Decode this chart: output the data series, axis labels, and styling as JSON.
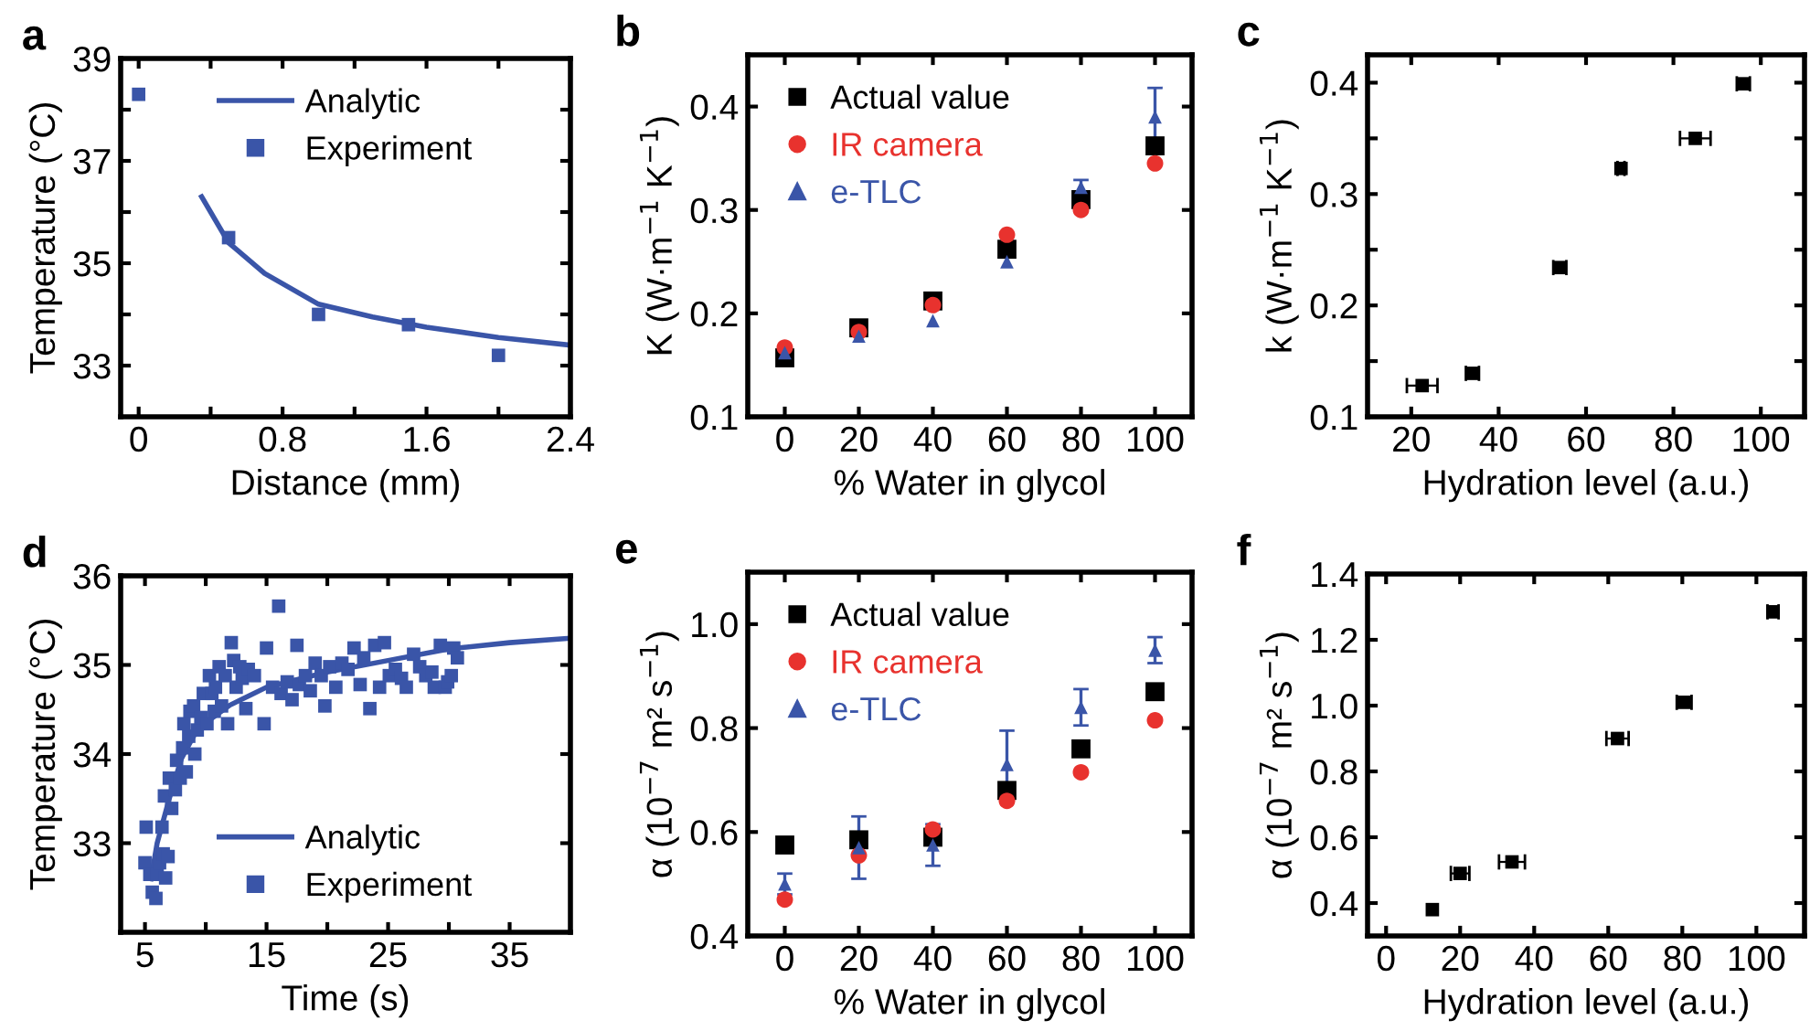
{
  "chart_data": [
    {
      "type": "scatter",
      "title": "a",
      "xlabel": "Distance (mm)",
      "ylabel": "Temperature (°C)",
      "xlim": [
        -0.1,
        2.4
      ],
      "ylim": [
        32,
        39
      ],
      "xticks": [
        0,
        {
          "value": 0.4,
          "label": null
        },
        0.8,
        {
          "value": 1.2,
          "label": null
        },
        1.6,
        {
          "value": 2.0,
          "label": null
        },
        2.4
      ],
      "yticks": [
        33,
        {
          "value": 34,
          "label": null
        },
        35,
        {
          "value": 36,
          "label": null
        },
        37,
        {
          "value": 38,
          "label": null
        },
        39
      ],
      "legend": "top",
      "series": [
        {
          "name": "Analytic",
          "type": "line",
          "color": "#3a55a8",
          "line_style": "solid",
          "x": [
            0.35,
            0.5,
            0.7,
            1.0,
            1.3,
            1.6,
            2.0,
            2.4
          ],
          "values": [
            36.3,
            35.4,
            34.8,
            34.2,
            33.95,
            33.75,
            33.55,
            33.4
          ]
        },
        {
          "name": "Experiment",
          "type": "scatter",
          "marker": "square",
          "color": "#3a55a8",
          "x": [
            0,
            0.5,
            1.0,
            1.5,
            2.0
          ],
          "values": [
            38.3,
            35.5,
            34.0,
            33.8,
            33.2
          ]
        }
      ]
    },
    {
      "type": "scatter",
      "title": "b",
      "xlabel": "% Water in glycol",
      "ylabel": "K (W·m$^{−1}$ K$^{−1}$)",
      "xlim": [
        -10,
        110
      ],
      "ylim": [
        0.1,
        0.45
      ],
      "xticks": [
        0,
        20,
        40,
        60,
        80,
        100
      ],
      "yticks": [
        0.1,
        0.2,
        0.3,
        0.4
      ],
      "legend": "top left",
      "x": [
        0,
        20,
        40,
        60,
        80,
        100
      ],
      "series": [
        {
          "name": "Actual value",
          "marker": "square",
          "color": "#000000",
          "values": [
            0.157,
            0.186,
            0.212,
            0.262,
            0.31,
            0.362
          ]
        },
        {
          "name": "IR camera",
          "marker": "circle",
          "color": "#e8322e",
          "values": [
            0.167,
            0.182,
            0.208,
            0.276,
            0.3,
            0.345
          ]
        },
        {
          "name": "e-TLC",
          "marker": "triangle",
          "color": "#3a55a8",
          "values": [
            0.162,
            0.178,
            0.193,
            0.25,
            0.322,
            0.39
          ],
          "errors": [
            null,
            null,
            null,
            null,
            0.007,
            0.028
          ]
        }
      ]
    },
    {
      "type": "scatter",
      "title": "c",
      "xlabel": "Hydration level (a.u.)",
      "ylabel": "k (W·m$^{−1}$ K$^{−1}$)",
      "xlim": [
        10,
        110
      ],
      "ylim": [
        0.1,
        0.425
      ],
      "xticks": [
        20,
        40,
        60,
        80,
        100
      ],
      "yticks": [
        0.1,
        {
          "value": 0.15,
          "label": null
        },
        0.2,
        {
          "value": 0.25,
          "label": null
        },
        0.3,
        {
          "value": 0.35,
          "label": null
        },
        0.4
      ],
      "series": [
        {
          "marker": "square",
          "color": "#000000",
          "x": [
            22.5,
            34,
            54,
            68,
            85,
            96
          ],
          "values": [
            0.128,
            0.139,
            0.234,
            0.323,
            0.35,
            0.399
          ],
          "xerrors": [
            3.5,
            1.5,
            1.5,
            0.8,
            3.5,
            1.5
          ]
        }
      ]
    },
    {
      "type": "scatter",
      "title": "d",
      "xlabel": "Time (s)",
      "ylabel": "Temperature (°C)",
      "xlim": [
        3,
        40
      ],
      "ylim": [
        32,
        36
      ],
      "xticks": [
        5,
        {
          "value": 10,
          "label": null
        },
        15,
        {
          "value": 20,
          "label": null
        },
        25,
        {
          "value": 30,
          "label": null
        },
        35
      ],
      "yticks": [
        33,
        34,
        35,
        36
      ],
      "legend": "bottom",
      "series": [
        {
          "name": "Analytic",
          "type": "line",
          "color": "#3a55a8",
          "line_style": "solid",
          "x": [
            5.5,
            6,
            7,
            8,
            9,
            10,
            11,
            12,
            15,
            20,
            25,
            30,
            35,
            40
          ],
          "values": [
            32.6,
            33.0,
            33.5,
            33.95,
            34.2,
            34.35,
            34.45,
            34.55,
            34.75,
            34.92,
            35.05,
            35.18,
            35.25,
            35.3
          ]
        },
        {
          "name": "Experiment",
          "type": "scatter",
          "marker": "square",
          "color": "#3a55a8",
          "x": [
            5.0,
            5.1,
            5.4,
            5.6,
            5.9,
            6.0,
            6.2,
            6.4,
            6.5,
            6.7,
            6.9,
            6.6,
            7.0,
            7.2,
            7.5,
            7.6,
            7.9,
            8.1,
            8.2,
            8.4,
            8.6,
            8.7,
            9.0,
            9.1,
            9.3,
            9.6,
            9.8,
            10.1,
            10.3,
            10.5,
            10.7,
            10.8,
            11.1,
            11.3,
            11.6,
            11.8,
            12.1,
            12.3,
            12.5,
            12.8,
            13.0,
            13.3,
            13.5,
            14.0,
            14.8,
            15.0,
            15.5,
            16.0,
            16.2,
            16.7,
            17.1,
            17.5,
            17.7,
            18.2,
            18.6,
            19.0,
            19.5,
            19.8,
            20.2,
            20.7,
            21.2,
            21.7,
            22.2,
            22.7,
            23.0,
            23.5,
            23.9,
            24.3,
            24.7,
            25.1,
            25.6,
            26.1,
            26.5,
            27.1,
            27.6,
            28.1,
            28.6,
            28.8,
            29.3,
            29.7,
            29.9,
            30.2,
            30.4,
            30.7
          ],
          "values": [
            32.78,
            33.18,
            32.65,
            32.45,
            32.38,
            32.65,
            32.78,
            33.18,
            32.88,
            32.61,
            32.85,
            33.53,
            33.73,
            33.39,
            33.6,
            33.93,
            33.73,
            34.07,
            34.34,
            33.8,
            34.2,
            34.48,
            34.54,
            34.0,
            34.27,
            34.41,
            34.68,
            34.34,
            34.88,
            34.68,
            34.48,
            34.75,
            34.98,
            34.54,
            34.88,
            34.34,
            35.25,
            35.05,
            34.75,
            34.98,
            34.85,
            34.51,
            34.95,
            34.88,
            34.34,
            35.19,
            34.75,
            35.66,
            34.68,
            34.81,
            34.61,
            35.22,
            34.78,
            34.88,
            34.71,
            35.02,
            34.88,
            34.54,
            34.98,
            34.75,
            35.02,
            34.95,
            35.19,
            34.78,
            35.08,
            34.51,
            35.22,
            34.75,
            35.25,
            34.88,
            34.95,
            34.85,
            34.75,
            35.12,
            34.98,
            34.88,
            34.92,
            34.75,
            35.22,
            34.75,
            34.81,
            34.88,
            35.19,
            35.08
          ]
        }
      ]
    },
    {
      "type": "scatter",
      "title": "e",
      "xlabel": "% Water in glycol",
      "ylabel": "α (10$^{−7}$ m² s$^{−1}$)",
      "xlim": [
        -10,
        110
      ],
      "ylim": [
        0.4,
        1.1
      ],
      "xticks": [
        0,
        20,
        40,
        60,
        80,
        100
      ],
      "yticks": [
        0.4,
        0.6,
        0.8,
        {
          "value": 1.0,
          "label": "1.0"
        }
      ],
      "legend": "top left",
      "x": [
        0,
        20,
        40,
        60,
        80,
        100
      ],
      "series": [
        {
          "name": "Actual value",
          "marker": "square",
          "color": "#000000",
          "values": [
            0.575,
            0.585,
            0.59,
            0.68,
            0.76,
            0.87
          ]
        },
        {
          "name": "IR camera",
          "marker": "circle",
          "color": "#e8322e",
          "values": [
            0.47,
            0.555,
            0.605,
            0.66,
            0.715,
            0.815
          ]
        },
        {
          "name": "e-TLC",
          "marker": "triangle",
          "color": "#3a55a8",
          "values": [
            0.5,
            0.57,
            0.575,
            0.73,
            0.84,
            0.95
          ],
          "errors": [
            0.02,
            0.06,
            0.04,
            0.065,
            0.035,
            0.025
          ]
        }
      ]
    },
    {
      "type": "scatter",
      "title": "f",
      "xlabel": "Hydration level (a.u.)",
      "ylabel": "α (10$^{−7}$ m² s$^{−1}$)",
      "xlim": [
        -5,
        113
      ],
      "ylim": [
        0.3,
        1.4
      ],
      "xticks": [
        0,
        20,
        40,
        60,
        80,
        100
      ],
      "yticks": [
        0.4,
        0.6,
        0.8,
        {
          "value": 1.0,
          "label": "1.0"
        },
        1.2,
        1.4
      ],
      "series": [
        {
          "marker": "square",
          "color": "#000000",
          "x": [
            12.5,
            20,
            34,
            62.5,
            80.5,
            104.5
          ],
          "values": [
            0.38,
            0.49,
            0.525,
            0.9,
            1.01,
            1.285
          ],
          "xerrors": [
            null,
            2.5,
            3.5,
            3,
            2,
            1.5
          ]
        }
      ]
    }
  ]
}
